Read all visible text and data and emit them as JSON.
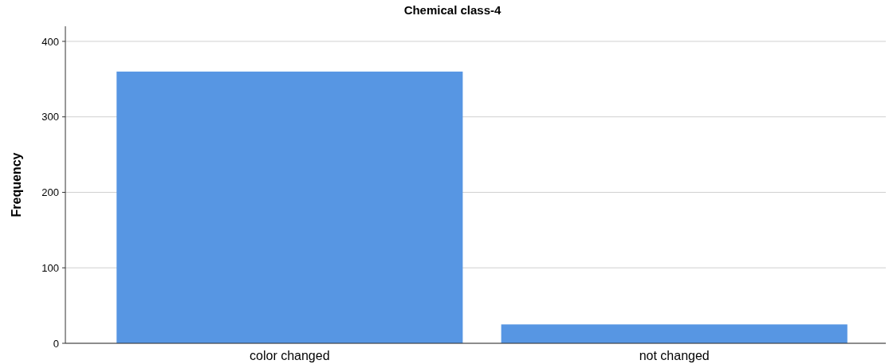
{
  "chart_data": {
    "type": "bar",
    "title": "Chemical class-4",
    "ylabel": "Frequency",
    "categories": [
      "color changed",
      "not changed"
    ],
    "values": [
      360,
      25
    ],
    "color": "#5796e3",
    "ylim": [
      0,
      420
    ],
    "yticks": [
      0,
      100,
      200,
      300,
      400
    ],
    "grid": "y"
  }
}
